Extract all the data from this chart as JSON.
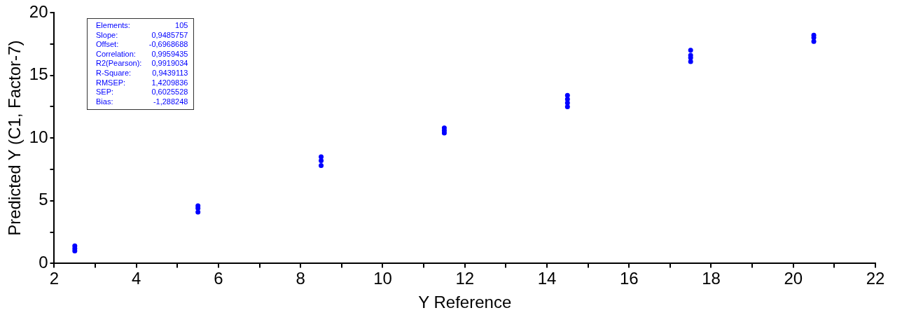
{
  "chart_data": {
    "type": "scatter",
    "xlabel": "Y Reference",
    "ylabel": "Predicted Y (C1, Factor-7)",
    "x": [
      2.5,
      2.5,
      2.5,
      5.5,
      5.5,
      5.5,
      8.5,
      8.5,
      8.5,
      11.5,
      11.5,
      11.5,
      14.5,
      14.5,
      14.5,
      14.5,
      17.5,
      17.5,
      17.5,
      17.5,
      20.5,
      20.5,
      20.5
    ],
    "series": [
      {
        "color": "#0000ff",
        "values": [
          1.4,
          1.2,
          1.0,
          4.6,
          4.4,
          4.1,
          8.5,
          8.2,
          7.8,
          10.8,
          10.6,
          10.4,
          13.4,
          13.1,
          12.8,
          12.5,
          17.0,
          16.6,
          16.4,
          16.1,
          18.2,
          18.0,
          17.7
        ]
      }
    ],
    "marker": "circle",
    "grid": false,
    "legend": false,
    "xlim": [
      2,
      22
    ],
    "xticks": [
      2,
      {
        "value": 3,
        "label": null
      },
      4,
      {
        "value": 5,
        "label": null
      },
      6,
      {
        "value": 7,
        "label": null
      },
      8,
      {
        "value": 9,
        "label": null
      },
      10,
      {
        "value": 11,
        "label": null
      },
      12,
      {
        "value": 13,
        "label": null
      },
      14,
      {
        "value": 15,
        "label": null
      },
      16,
      {
        "value": 17,
        "label": null
      },
      18,
      {
        "value": 19,
        "label": null
      },
      20,
      {
        "value": 21,
        "label": null
      },
      22
    ],
    "ylim": [
      0,
      20
    ],
    "yticks": [
      0,
      {
        "value": 2.5,
        "label": null
      },
      5,
      {
        "value": 7.5,
        "label": null
      },
      10,
      {
        "value": 12.5,
        "label": null
      },
      15,
      {
        "value": 17.5,
        "label": null
      },
      20
    ],
    "annotations": [
      "Elements: 105",
      "Slope: 0,9485757",
      "Offset: -0,6968688",
      "Correlation: 0,9959435",
      "R2(Pearson): 0,9919034",
      "R-Square: 0,9439113",
      "RMSEP: 1,4209836",
      "SEP: 0,6025528",
      "Bias: -1,288248"
    ]
  }
}
